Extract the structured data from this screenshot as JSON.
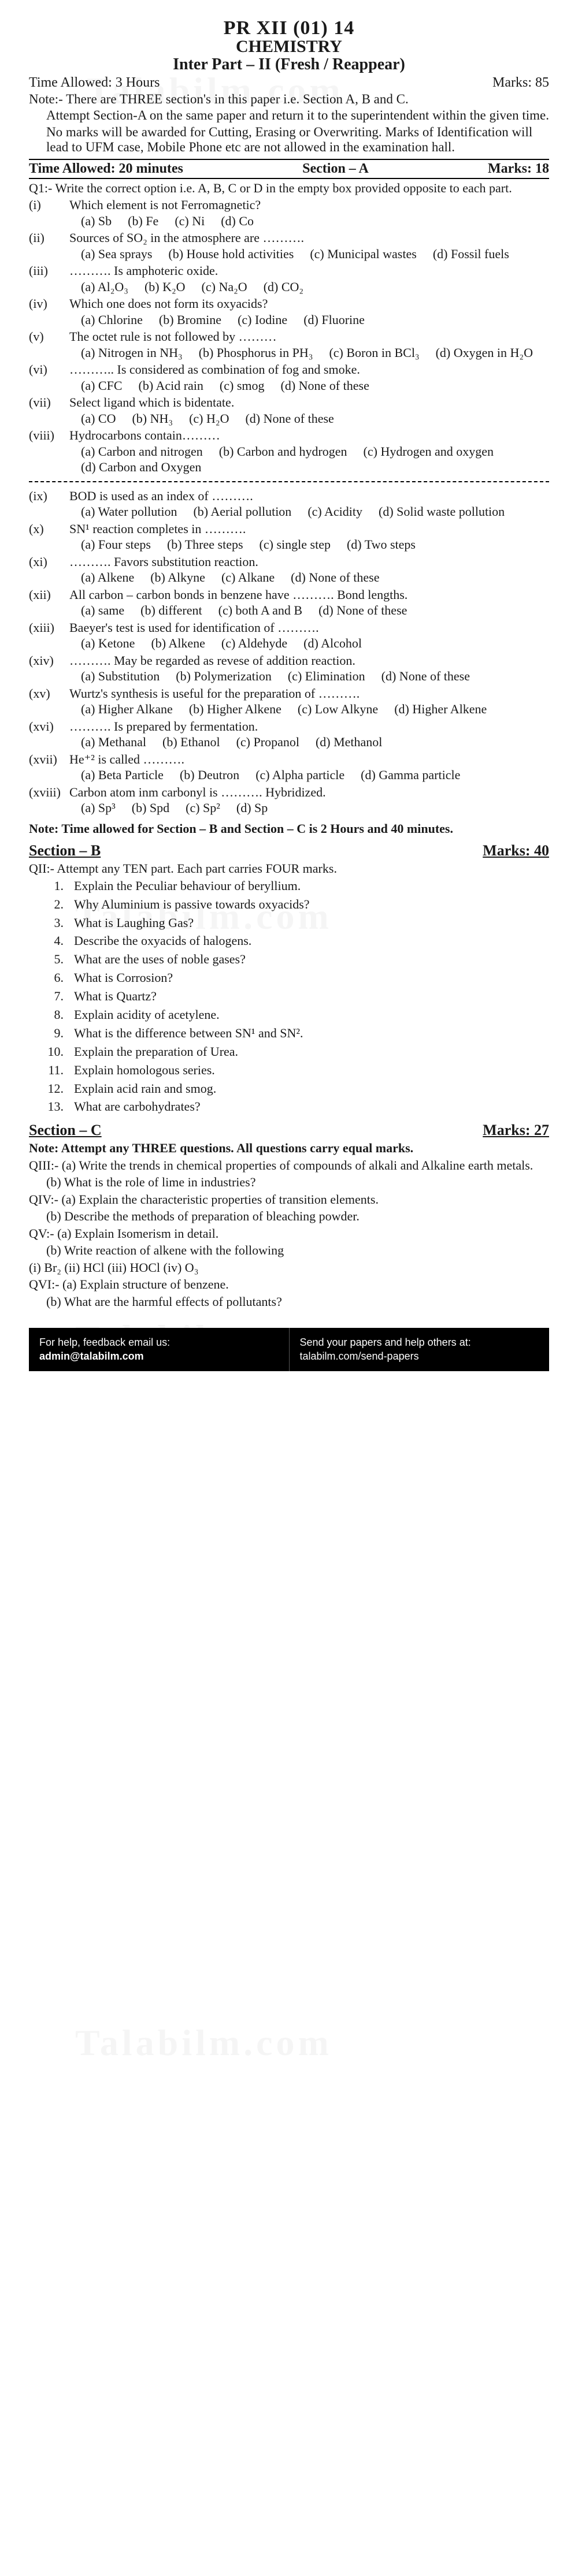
{
  "header": {
    "code": "PR XII (01) 14",
    "subject": "CHEMISTRY",
    "part": "Inter Part – II (Fresh / Reappear)",
    "time_allowed": "Time Allowed: 3 Hours",
    "marks": "Marks: 85",
    "note1": "Note:- There are THREE section's in this paper i.e. Section A, B and C.",
    "note2": "Attempt Section-A on the same paper and return it to the superintendent within the given time.",
    "note3": "No marks will be awarded for Cutting, Erasing or Overwriting. Marks of Identification will lead to UFM case, Mobile Phone etc are not allowed in the examination hall."
  },
  "sectionA": {
    "bar_time": "Time Allowed: 20 minutes",
    "bar_title": "Section – A",
    "bar_marks": "Marks: 18",
    "q1_instr": "Q1:-   Write the correct option i.e. A, B, C or D in the empty box provided opposite to each part.",
    "items": [
      {
        "n": "(i)",
        "q": "Which element is not Ferromagnetic?",
        "opts": [
          "(a) Sb",
          "(b) Fe",
          "(c) Ni",
          "(d) Co"
        ]
      },
      {
        "n": "(ii)",
        "q": "Sources of SO₂ in the atmosphere are ……….",
        "opts": [
          "(a) Sea sprays",
          "(b) House hold activities",
          "(c) Municipal wastes",
          "(d) Fossil fuels"
        ]
      },
      {
        "n": "(iii)",
        "q": "………. Is amphoteric oxide.",
        "opts": [
          "(a) Al₂O₃",
          "(b) K₂O",
          "(c) Na₂O",
          "(d) CO₂"
        ]
      },
      {
        "n": "(iv)",
        "q": "Which one does not form its oxyacids?",
        "opts": [
          "(a) Chlorine",
          "(b) Bromine",
          "(c) Iodine",
          "(d) Fluorine"
        ]
      },
      {
        "n": "(v)",
        "q": "The octet rule is not followed by   ………",
        "opts": [
          "(a) Nitrogen in NH₃",
          "(b) Phosphorus in PH₃",
          "(c) Boron in BCl₃",
          "(d) Oxygen in H₂O"
        ]
      },
      {
        "n": "(vi)",
        "q": "……….. Is considered as combination of fog and smoke.",
        "opts": [
          "(a) CFC",
          "(b) Acid rain",
          "(c) smog",
          "(d) None of these"
        ]
      },
      {
        "n": "(vii)",
        "q": "Select ligand which is bidentate.",
        "opts": [
          "(a) CO",
          "(b) NH₃",
          "(c) H₂O",
          "(d) None of these"
        ]
      },
      {
        "n": "(viii)",
        "q": "Hydrocarbons contain………",
        "opts": [
          "(a) Carbon and nitrogen",
          "(b) Carbon and hydrogen",
          "(c) Hydrogen and oxygen",
          "(d) Carbon and Oxygen"
        ]
      },
      {
        "n": "(ix)",
        "q": "BOD is used as an index of ……….",
        "opts": [
          "(a) Water pollution",
          "(b) Aerial pollution",
          "(c) Acidity",
          "(d) Solid waste pollution"
        ]
      },
      {
        "n": "(x)",
        "q": "SN¹ reaction completes in ……….",
        "opts": [
          "(a) Four steps",
          "(b) Three steps",
          "(c) single step",
          "(d) Two steps"
        ]
      },
      {
        "n": "(xi)",
        "q": "………. Favors substitution reaction.",
        "opts": [
          "(a) Alkene",
          "(b) Alkyne",
          "(c) Alkane",
          "(d) None of these"
        ]
      },
      {
        "n": "(xii)",
        "q": "All carbon – carbon bonds in benzene have ………. Bond lengths.",
        "opts": [
          "(a) same",
          "(b) different",
          "(c) both A and B",
          "(d) None of these"
        ]
      },
      {
        "n": "(xiii)",
        "q": "Baeyer's test is used for identification of ……….",
        "opts": [
          "(a) Ketone",
          "(b) Alkene",
          "(c) Aldehyde",
          "(d) Alcohol"
        ]
      },
      {
        "n": "(xiv)",
        "q": "………. May be regarded as revese of addition reaction.",
        "opts": [
          "(a) Substitution",
          "(b) Polymerization",
          "(c) Elimination",
          "(d) None of these"
        ]
      },
      {
        "n": "(xv)",
        "q": "Wurtz's synthesis is useful for the preparation of ……….",
        "opts": [
          "(a) Higher Alkane",
          "(b) Higher Alkene",
          "(c) Low Alkyne",
          "(d) Higher Alkene"
        ]
      },
      {
        "n": "(xvi)",
        "q": "………. Is prepared by fermentation.",
        "opts": [
          "(a) Methanal",
          "(b) Ethanol",
          "(c) Propanol",
          "(d) Methanol"
        ]
      },
      {
        "n": "(xvii)",
        "q": "He⁺² is called ……….",
        "opts": [
          "(a) Beta Particle",
          "(b) Deutron",
          "(c) Alpha particle",
          "(d) Gamma particle"
        ]
      },
      {
        "n": "(xviii)",
        "q": "Carbon atom inm carbonyl is ………. Hybridized.",
        "opts": [
          "(a) Sp³",
          "(b) Spd",
          "(c) Sp²",
          "(d) Sp"
        ]
      }
    ],
    "note_after": "Note:  Time allowed for Section – B and Section – C is 2 Hours and 40 minutes."
  },
  "sectionB": {
    "title": "Section – B",
    "marks": "Marks: 40",
    "instr": "QII:-   Attempt any TEN part. Each part carries FOUR marks.",
    "items": [
      {
        "n": "1.",
        "t": "Explain the Peculiar behaviour of beryllium."
      },
      {
        "n": "2.",
        "t": "Why Aluminium is passive towards oxyacids?"
      },
      {
        "n": "3.",
        "t": "What is Laughing Gas?"
      },
      {
        "n": "4.",
        "t": "Describe the oxyacids of halogens."
      },
      {
        "n": "5.",
        "t": "What are the uses of noble gases?"
      },
      {
        "n": "6.",
        "t": "What is Corrosion?"
      },
      {
        "n": "7.",
        "t": "What is Quartz?"
      },
      {
        "n": "8.",
        "t": "Explain acidity of acetylene."
      },
      {
        "n": "9.",
        "t": "What is the difference between SN¹ and SN²."
      },
      {
        "n": "10.",
        "t": "Explain the preparation of Urea."
      },
      {
        "n": "11.",
        "t": "Explain homologous series."
      },
      {
        "n": "12.",
        "t": "Explain acid rain and smog."
      },
      {
        "n": "13.",
        "t": "What are carbohydrates?"
      }
    ]
  },
  "sectionC": {
    "title": "Section – C",
    "marks": "Marks: 27",
    "note": "Note:  Attempt any THREE questions. All questions carry equal marks.",
    "q3a": "QIII:-  (a)     Write the trends in chemical properties of compounds of alkali and Alkaline earth metals.",
    "q3b": "(b)       What is the role of lime in industries?",
    "q4a": "QIV:-   (a)     Explain the characteristic properties of transition elements.",
    "q4b": "(b)       Describe the methods of preparation of bleaching powder.",
    "q5a": "QV:-    (a)     Explain Isomerism in detail.",
    "q5b": "(b)     Write reaction of alkene with the following",
    "q5b_opts": "(i) Br₂   (ii) HCl   (iii) HOCl   (iv) O₃",
    "q6a": "QVI:-   (a)     Explain structure of benzene.",
    "q6b": "(b)     What are the harmful effects of pollutants?"
  },
  "footer": {
    "left_line1": "For help, feedback email us:",
    "left_line2": "admin@talabilm.com",
    "right_line1": "Send your papers and help others at:",
    "right_line2": "talabilm.com/send-papers"
  },
  "watermark": "Talabilm.com"
}
